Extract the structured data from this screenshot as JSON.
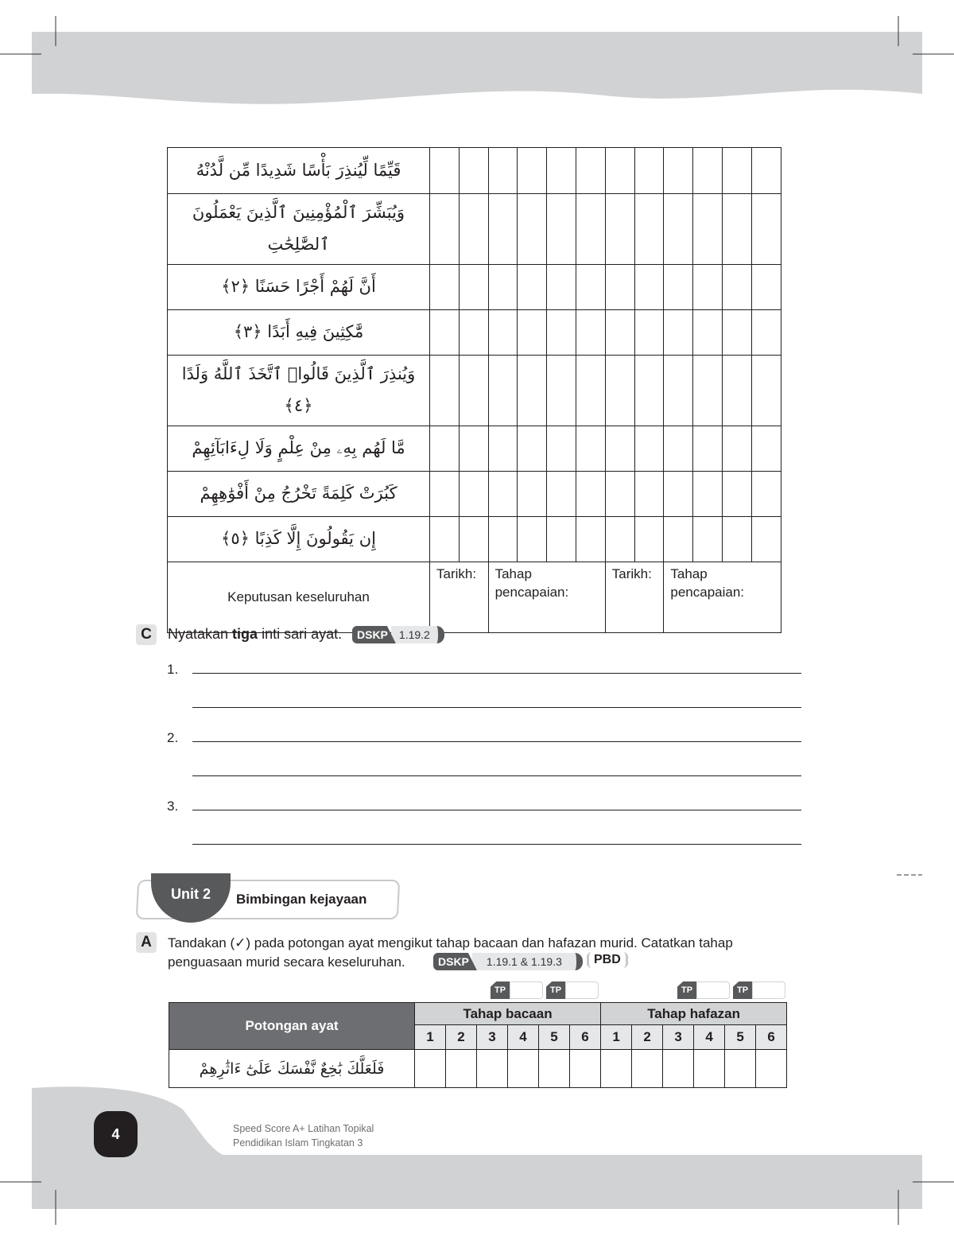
{
  "verses_table": {
    "rows": [
      "قَيِّمًا لِّيُنذِرَ بَأْسًا شَدِيدًا مِّن لَّدُنْهُ",
      "وَيُبَشِّرَ ٱلْمُؤْمِنِينَ ٱلَّذِينَ يَعْمَلُونَ ٱلصَّٰلِحَٰتِ",
      "أَنَّ لَهُمْ أَجْرًا حَسَنًا ﴿٢﴾",
      "مَّٰكِثِينَ فِيهِ أَبَدًا ﴿٣﴾",
      "وَيُنذِرَ ٱلَّذِينَ قَالُوا۟ ٱتَّخَذَ ٱللَّهُ وَلَدًا ﴿٤﴾",
      "مَّا لَهُم بِهِۦ مِنْ عِلْمٍ وَلَا لِءَابَآئِهِمْ",
      "كَبُرَتْ كَلِمَةً تَخْرُجُ مِنْ أَفْوَٰهِهِمْ",
      "إِن يَقُولُونَ إِلَّا كَذِبًا ﴿٥﴾"
    ],
    "summary_label": "Keputusan keseluruhan",
    "date_label": "Tarikh:",
    "level_label": "Tahap pencapaian:"
  },
  "section_c": {
    "letter": "C",
    "instruction_pre": "Nyatakan ",
    "instruction_bold": "tiga",
    "instruction_post": " inti sari ayat.",
    "dskp_label": "DSKP",
    "dskp_code": "1.19.2",
    "numbers": [
      "1.",
      "2.",
      "3."
    ]
  },
  "unit": {
    "label": "Unit 2",
    "title": "Bimbingan kejayaan"
  },
  "section_a": {
    "letter": "A",
    "instruction": "Tandakan (✓) pada potongan ayat mengikut tahap bacaan dan hafazan murid. Catatkan tahap penguasaan murid secara keseluruhan.",
    "dskp_label": "DSKP",
    "dskp_code": "1.19.1 & 1.19.3",
    "pbd": "PBD",
    "tp_label": "TP",
    "table": {
      "col_header": "Potongan ayat",
      "group1": "Tahap bacaan",
      "group2": "Tahap hafazan",
      "levels": [
        "1",
        "2",
        "3",
        "4",
        "5",
        "6"
      ],
      "rows": [
        "فَلَعَلَّكَ بَٰخِعٌ نَّفْسَكَ عَلَىٰٓ ءَاثَٰرِهِمْ"
      ]
    }
  },
  "footer": {
    "page_number": "4",
    "book_line1": "Speed Score A+ Latihan Topikal",
    "book_line2": "Pendidikan Islam Tingkatan 3"
  },
  "colors": {
    "dark_gray": "#58595b",
    "header_gray": "#6d6e71",
    "light_gray": "#d1d3d4",
    "band_gray": "#d1d2d4"
  }
}
